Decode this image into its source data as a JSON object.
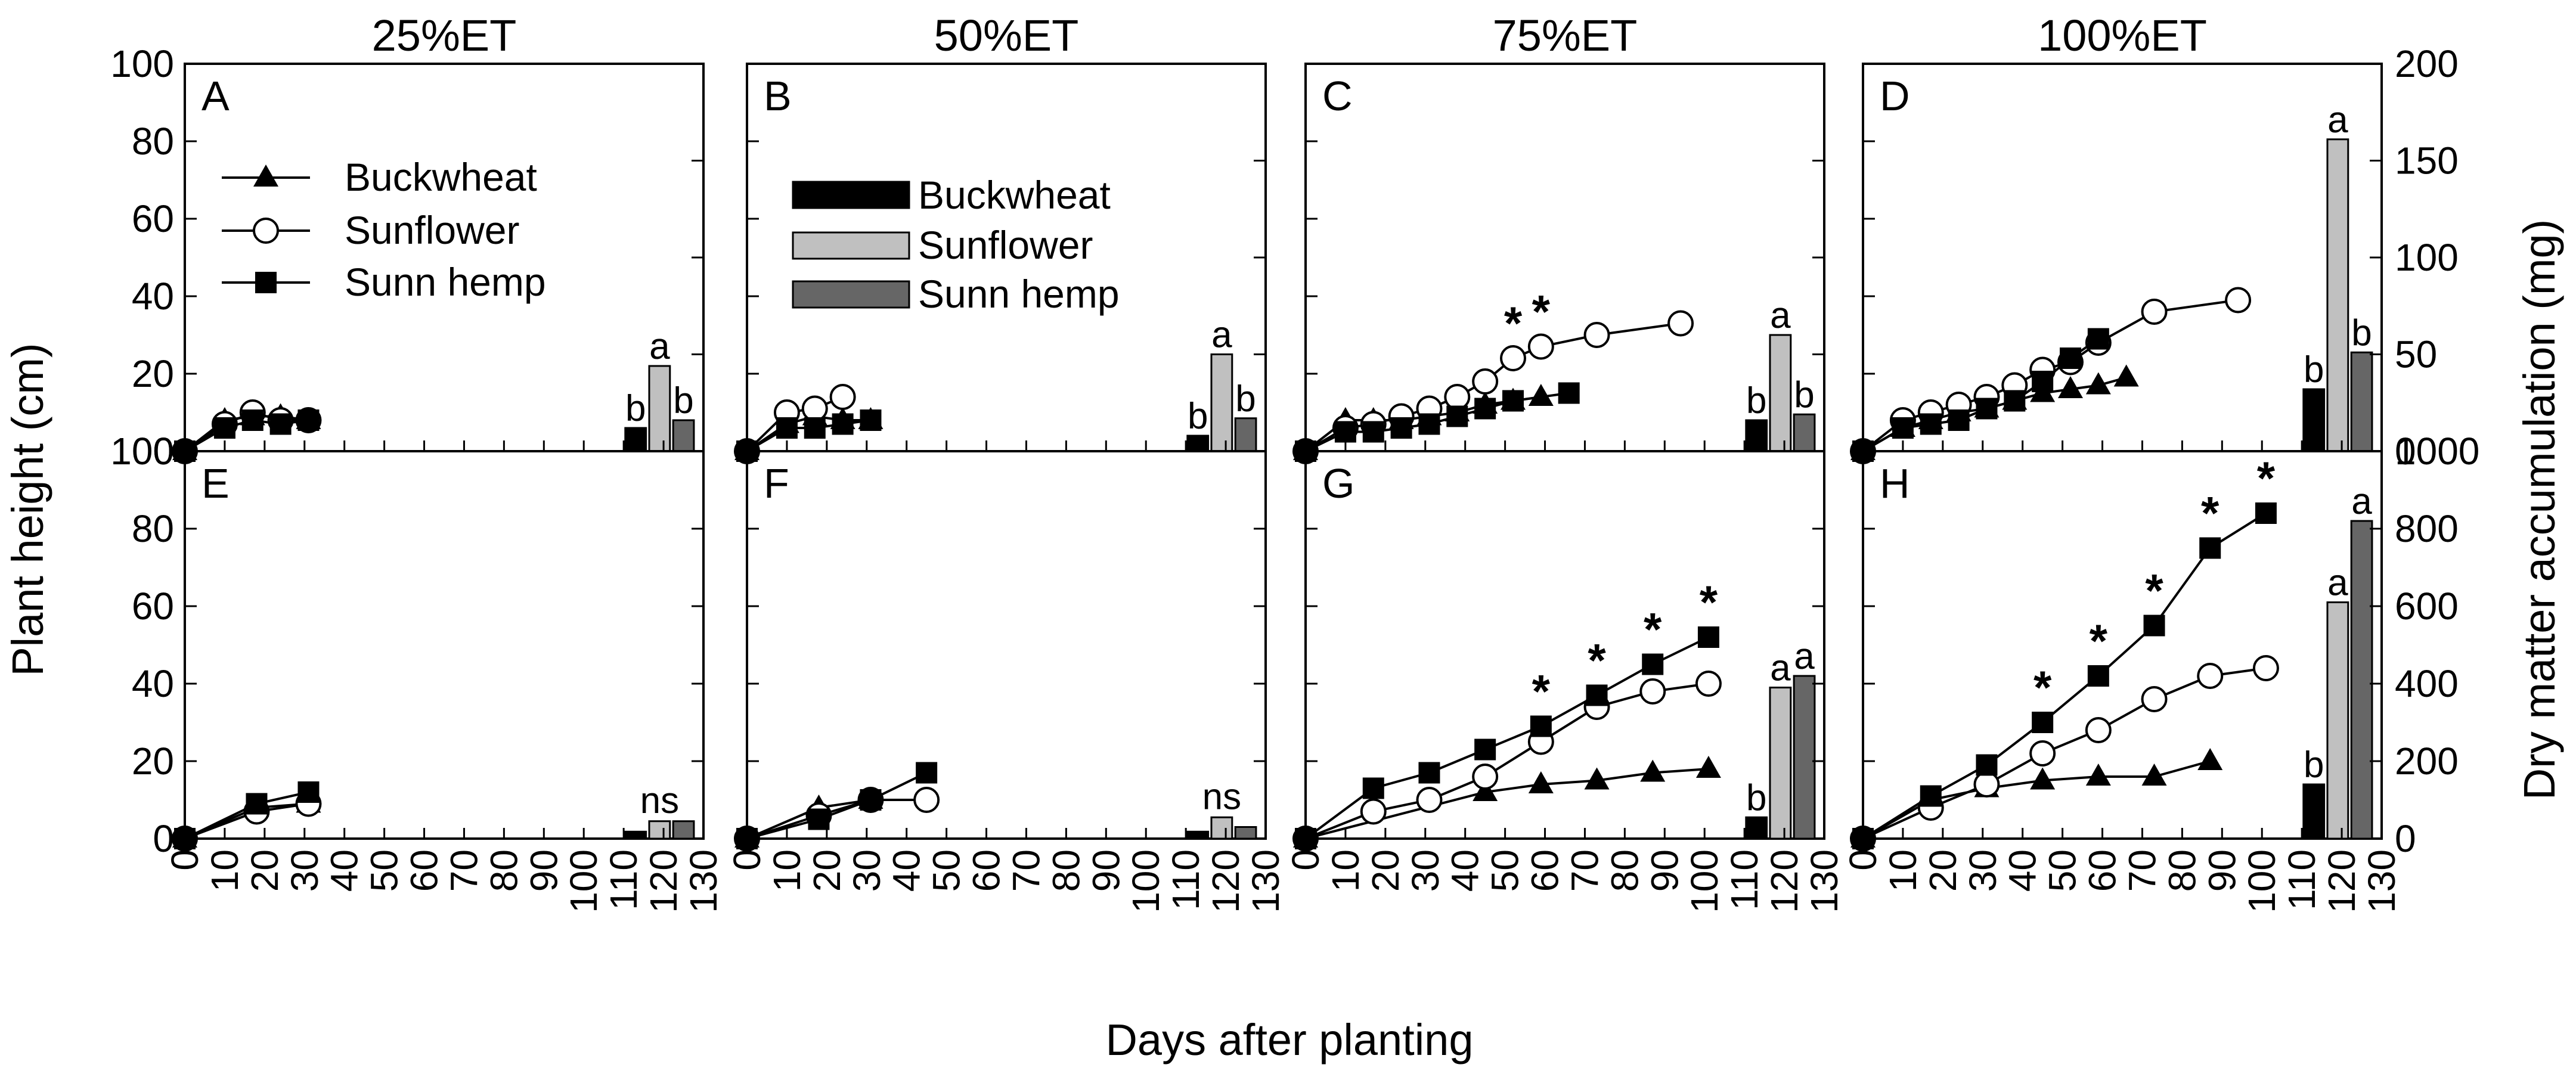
{
  "figure": {
    "x_axis_label": "Days after planting",
    "y_axis_left_label": "Plant height (cm)",
    "y_axis_right_label": "Dry matter accumulation (mg)"
  },
  "colors": {
    "buckwheat_bar": "#000000",
    "sunflower_bar": "#c0c0c0",
    "sunn_hemp_bar": "#666666",
    "line": "#000000"
  },
  "legends": {
    "lines": {
      "buckwheat": "Buckwheat",
      "sunflower": "Sunflower",
      "sunn_hemp": "Sunn hemp"
    },
    "bars": {
      "buckwheat": "Buckwheat",
      "sunflower": "Sunflower",
      "sunn_hemp": "Sunn hemp"
    }
  },
  "chart_data": [
    {
      "panel": "A",
      "row": 0,
      "col": 0,
      "type": "line+bar",
      "title": "25%ET",
      "xlim": [
        0,
        130
      ],
      "ylim": [
        0,
        100
      ],
      "y2lim": [
        0,
        200
      ],
      "x_ticks": [
        0,
        10,
        20,
        30,
        40,
        50,
        60,
        70,
        80,
        90,
        100,
        110,
        120,
        130
      ],
      "y_ticks": [
        0,
        20,
        40,
        60,
        80,
        100
      ],
      "y2_ticks": [
        0,
        50,
        100,
        150,
        200
      ],
      "series": [
        {
          "name": "Buckwheat",
          "marker": "triangle",
          "x": [
            0,
            10,
            17,
            24,
            31
          ],
          "y": [
            0,
            8,
            9,
            9,
            8
          ]
        },
        {
          "name": "Sunflower",
          "marker": "circle",
          "x": [
            0,
            10,
            17,
            24,
            31
          ],
          "y": [
            0,
            7,
            10,
            8,
            8
          ]
        },
        {
          "name": "Sunn hemp",
          "marker": "square",
          "x": [
            0,
            10,
            17,
            24,
            31
          ],
          "y": [
            0,
            6,
            8,
            7,
            8
          ]
        }
      ],
      "stars": [],
      "bars": [
        {
          "name": "Buckwheat",
          "value": 12,
          "label": "b"
        },
        {
          "name": "Sunflower",
          "value": 44,
          "label": "a"
        },
        {
          "name": "Sunn hemp",
          "value": 16,
          "label": "b"
        }
      ],
      "bar_group_label": ""
    },
    {
      "panel": "B",
      "row": 0,
      "col": 1,
      "type": "line+bar",
      "title": "50%ET",
      "xlim": [
        0,
        130
      ],
      "ylim": [
        0,
        100
      ],
      "y2lim": [
        0,
        200
      ],
      "x_ticks": [
        0,
        10,
        20,
        30,
        40,
        50,
        60,
        70,
        80,
        90,
        100,
        110,
        120,
        130
      ],
      "y_ticks": [
        0,
        20,
        40,
        60,
        80,
        100
      ],
      "y2_ticks": [
        0,
        50,
        100,
        150,
        200
      ],
      "series": [
        {
          "name": "Buckwheat",
          "marker": "triangle",
          "x": [
            0,
            10,
            17,
            24,
            31
          ],
          "y": [
            0,
            7,
            9,
            8,
            8
          ]
        },
        {
          "name": "Sunflower",
          "marker": "circle",
          "x": [
            0,
            10,
            17,
            24
          ],
          "y": [
            0,
            10,
            11,
            14
          ]
        },
        {
          "name": "Sunn hemp",
          "marker": "square",
          "x": [
            0,
            10,
            17,
            24,
            31
          ],
          "y": [
            0,
            6,
            6,
            7,
            8
          ]
        }
      ],
      "stars": [],
      "bars": [
        {
          "name": "Buckwheat",
          "value": 8,
          "label": "b"
        },
        {
          "name": "Sunflower",
          "value": 50,
          "label": "a"
        },
        {
          "name": "Sunn hemp",
          "value": 17,
          "label": "b"
        }
      ],
      "bar_group_label": ""
    },
    {
      "panel": "C",
      "row": 0,
      "col": 2,
      "type": "line+bar",
      "title": "75%ET",
      "xlim": [
        0,
        130
      ],
      "ylim": [
        0,
        100
      ],
      "y2lim": [
        0,
        200
      ],
      "x_ticks": [
        0,
        10,
        20,
        30,
        40,
        50,
        60,
        70,
        80,
        90,
        100,
        110,
        120,
        130
      ],
      "y_ticks": [
        0,
        20,
        40,
        60,
        80,
        100
      ],
      "y2_ticks": [
        0,
        50,
        100,
        150,
        200
      ],
      "series": [
        {
          "name": "Buckwheat",
          "marker": "triangle",
          "x": [
            0,
            10,
            17,
            24,
            31,
            38,
            45,
            52,
            59
          ],
          "y": [
            0,
            8,
            8,
            8,
            9,
            10,
            12,
            13,
            14
          ]
        },
        {
          "name": "Sunflower",
          "marker": "circle",
          "x": [
            0,
            10,
            17,
            24,
            31,
            38,
            45,
            52,
            59,
            73,
            94
          ],
          "y": [
            0,
            6,
            7,
            9,
            11,
            14,
            18,
            24,
            27,
            30,
            33
          ]
        },
        {
          "name": "Sunn hemp",
          "marker": "square",
          "x": [
            0,
            10,
            17,
            24,
            31,
            38,
            45,
            52,
            66
          ],
          "y": [
            0,
            5,
            5,
            6,
            7,
            9,
            11,
            13,
            15
          ]
        }
      ],
      "stars": [
        {
          "x": 52,
          "y": 24,
          "label": "*"
        },
        {
          "x": 59,
          "y": 27,
          "label": "*"
        }
      ],
      "bars": [
        {
          "name": "Buckwheat",
          "value": 16,
          "label": "b"
        },
        {
          "name": "Sunflower",
          "value": 60,
          "label": "a"
        },
        {
          "name": "Sunn hemp",
          "value": 19,
          "label": "b"
        }
      ],
      "bar_group_label": ""
    },
    {
      "panel": "D",
      "row": 0,
      "col": 3,
      "type": "line+bar",
      "title": "100%ET",
      "xlim": [
        0,
        130
      ],
      "ylim": [
        0,
        100
      ],
      "y2lim": [
        0,
        200
      ],
      "x_ticks": [
        0,
        10,
        20,
        30,
        40,
        50,
        60,
        70,
        80,
        90,
        100,
        110,
        120,
        130
      ],
      "y_ticks": [
        0,
        20,
        40,
        60,
        80,
        100
      ],
      "y2_ticks": [
        0,
        50,
        100,
        150,
        200
      ],
      "series": [
        {
          "name": "Buckwheat",
          "marker": "triangle",
          "x": [
            0,
            10,
            17,
            24,
            31,
            38,
            45,
            52,
            59,
            66
          ],
          "y": [
            0,
            6,
            8,
            10,
            11,
            13,
            15,
            16,
            17,
            19
          ]
        },
        {
          "name": "Sunflower",
          "marker": "circle",
          "x": [
            0,
            10,
            17,
            24,
            31,
            38,
            45,
            52,
            59,
            73,
            94
          ],
          "y": [
            0,
            8,
            10,
            12,
            14,
            17,
            21,
            23,
            28,
            36,
            39
          ]
        },
        {
          "name": "Sunn hemp",
          "marker": "square",
          "x": [
            0,
            10,
            17,
            24,
            31,
            38,
            45,
            52,
            59
          ],
          "y": [
            0,
            6,
            7,
            8,
            11,
            13,
            18,
            24,
            29
          ]
        }
      ],
      "stars": [],
      "bars": [
        {
          "name": "Buckwheat",
          "value": 32,
          "label": "b"
        },
        {
          "name": "Sunflower",
          "value": 161,
          "label": "a"
        },
        {
          "name": "Sunn hemp",
          "value": 51,
          "label": "b"
        }
      ],
      "bar_group_label": ""
    },
    {
      "panel": "E",
      "row": 1,
      "col": 0,
      "type": "line+bar",
      "title": "",
      "xlim": [
        0,
        130
      ],
      "ylim": [
        0,
        100
      ],
      "y2lim": [
        0,
        1000
      ],
      "x_ticks": [
        0,
        10,
        20,
        30,
        40,
        50,
        60,
        70,
        80,
        90,
        100,
        110,
        120,
        130
      ],
      "y_ticks": [
        0,
        20,
        40,
        60,
        80,
        100
      ],
      "y2_ticks": [
        0,
        200,
        400,
        600,
        800,
        1000
      ],
      "series": [
        {
          "name": "Buckwheat",
          "marker": "triangle",
          "x": [
            0,
            18,
            31
          ],
          "y": [
            0,
            8,
            9
          ]
        },
        {
          "name": "Sunflower",
          "marker": "circle",
          "x": [
            0,
            18,
            31
          ],
          "y": [
            0,
            7,
            9
          ]
        },
        {
          "name": "Sunn hemp",
          "marker": "square",
          "x": [
            0,
            18,
            31
          ],
          "y": [
            0,
            9,
            12
          ]
        }
      ],
      "stars": [],
      "bars": [
        {
          "name": "Buckwheat",
          "value": 18,
          "label": ""
        },
        {
          "name": "Sunflower",
          "value": 45,
          "label": ""
        },
        {
          "name": "Sunn hemp",
          "value": 45,
          "label": ""
        }
      ],
      "bar_group_label": "ns"
    },
    {
      "panel": "F",
      "row": 1,
      "col": 1,
      "type": "line+bar",
      "title": "",
      "xlim": [
        0,
        130
      ],
      "ylim": [
        0,
        100
      ],
      "y2lim": [
        0,
        1000
      ],
      "x_ticks": [
        0,
        10,
        20,
        30,
        40,
        50,
        60,
        70,
        80,
        90,
        100,
        110,
        120,
        130
      ],
      "y_ticks": [
        0,
        20,
        40,
        60,
        80,
        100
      ],
      "y2_ticks": [
        0,
        200,
        400,
        600,
        800,
        1000
      ],
      "series": [
        {
          "name": "Buckwheat",
          "marker": "triangle",
          "x": [
            0,
            18,
            31
          ],
          "y": [
            0,
            8,
            10
          ]
        },
        {
          "name": "Sunflower",
          "marker": "circle",
          "x": [
            0,
            18,
            31,
            45
          ],
          "y": [
            0,
            6,
            10,
            10
          ]
        },
        {
          "name": "Sunn hemp",
          "marker": "square",
          "x": [
            0,
            18,
            31,
            45
          ],
          "y": [
            0,
            5,
            10,
            17
          ]
        }
      ],
      "stars": [],
      "bars": [
        {
          "name": "Buckwheat",
          "value": 18,
          "label": ""
        },
        {
          "name": "Sunflower",
          "value": 55,
          "label": ""
        },
        {
          "name": "Sunn hemp",
          "value": 30,
          "label": ""
        }
      ],
      "bar_group_label": "ns"
    },
    {
      "panel": "G",
      "row": 1,
      "col": 2,
      "type": "line+bar",
      "title": "",
      "xlim": [
        0,
        130
      ],
      "ylim": [
        0,
        100
      ],
      "y2lim": [
        0,
        1000
      ],
      "x_ticks": [
        0,
        10,
        20,
        30,
        40,
        50,
        60,
        70,
        80,
        90,
        100,
        110,
        120,
        130
      ],
      "y_ticks": [
        0,
        20,
        40,
        60,
        80,
        100
      ],
      "y2_ticks": [
        0,
        200,
        400,
        600,
        800,
        1000
      ],
      "series": [
        {
          "name": "Buckwheat",
          "marker": "triangle",
          "x": [
            0,
            45,
            59,
            73,
            87,
            101
          ],
          "y": [
            0,
            12,
            14,
            15,
            17,
            18
          ]
        },
        {
          "name": "Sunflower",
          "marker": "circle",
          "x": [
            0,
            17,
            31,
            45,
            59,
            73,
            87,
            101
          ],
          "y": [
            0,
            7,
            10,
            16,
            25,
            34,
            38,
            40
          ]
        },
        {
          "name": "Sunn hemp",
          "marker": "square",
          "x": [
            0,
            17,
            31,
            45,
            59,
            73,
            87,
            101
          ],
          "y": [
            0,
            13,
            17,
            23,
            29,
            37,
            45,
            52
          ]
        }
      ],
      "stars": [
        {
          "x": 59,
          "y": 29,
          "label": "*"
        },
        {
          "x": 73,
          "y": 37,
          "label": "*"
        },
        {
          "x": 87,
          "y": 45,
          "label": "*"
        },
        {
          "x": 101,
          "y": 52,
          "label": "*"
        }
      ],
      "bars": [
        {
          "name": "Buckwheat",
          "value": 55,
          "label": "b"
        },
        {
          "name": "Sunflower",
          "value": 390,
          "label": "a"
        },
        {
          "name": "Sunn hemp",
          "value": 420,
          "label": "a"
        }
      ],
      "bar_group_label": ""
    },
    {
      "panel": "H",
      "row": 1,
      "col": 3,
      "type": "line+bar",
      "title": "",
      "xlim": [
        0,
        130
      ],
      "ylim": [
        0,
        100
      ],
      "y2lim": [
        0,
        1000
      ],
      "x_ticks": [
        0,
        10,
        20,
        30,
        40,
        50,
        60,
        70,
        80,
        90,
        100,
        110,
        120,
        130
      ],
      "y_ticks": [
        0,
        20,
        40,
        60,
        80,
        100
      ],
      "y2_ticks": [
        0,
        200,
        400,
        600,
        800,
        1000
      ],
      "series": [
        {
          "name": "Buckwheat",
          "marker": "triangle",
          "x": [
            0,
            17,
            31,
            45,
            59,
            73,
            87
          ],
          "y": [
            0,
            10,
            13,
            15,
            16,
            16,
            20
          ]
        },
        {
          "name": "Sunflower",
          "marker": "circle",
          "x": [
            0,
            17,
            31,
            45,
            59,
            73,
            87,
            101
          ],
          "y": [
            0,
            8,
            14,
            22,
            28,
            36,
            42,
            44
          ]
        },
        {
          "name": "Sunn hemp",
          "marker": "square",
          "x": [
            0,
            17,
            31,
            45,
            59,
            73,
            87,
            101
          ],
          "y": [
            0,
            11,
            19,
            30,
            42,
            55,
            75,
            84
          ]
        }
      ],
      "stars": [
        {
          "x": 45,
          "y": 30,
          "label": "*"
        },
        {
          "x": 59,
          "y": 42,
          "label": "*"
        },
        {
          "x": 73,
          "y": 55,
          "label": "*"
        },
        {
          "x": 87,
          "y": 75,
          "label": "*"
        },
        {
          "x": 101,
          "y": 84,
          "label": "*"
        }
      ],
      "bars": [
        {
          "name": "Buckwheat",
          "value": 140,
          "label": "b"
        },
        {
          "name": "Sunflower",
          "value": 610,
          "label": "a"
        },
        {
          "name": "Sunn hemp",
          "value": 820,
          "label": "a"
        }
      ],
      "bar_group_label": ""
    }
  ]
}
